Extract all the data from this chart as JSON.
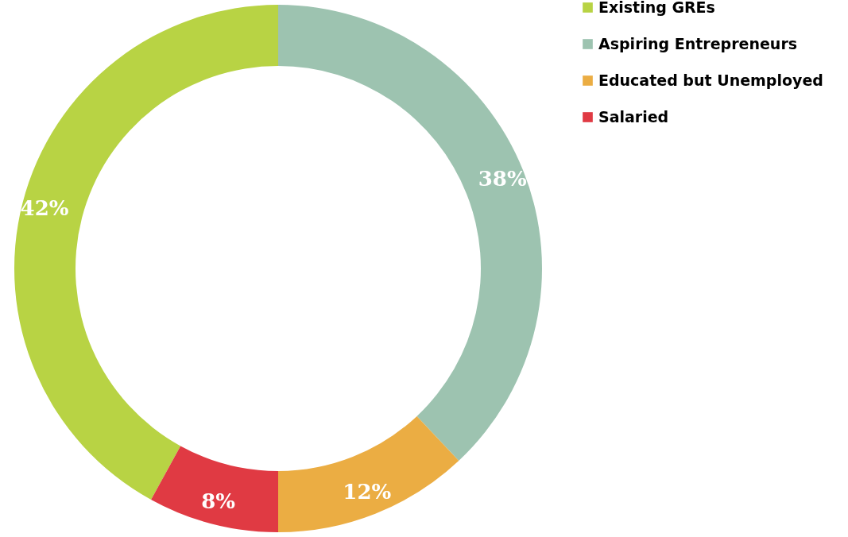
{
  "chart_data": {
    "type": "donut",
    "categories": [
      "Existing GREs",
      "Aspiring Entrepreneurs",
      "Educated but Unemployed",
      "Salaried"
    ],
    "values": [
      42,
      38,
      12,
      8
    ],
    "colors": [
      "#b8d344",
      "#9dc3b0",
      "#ebad43",
      "#e03a43"
    ],
    "value_labels": [
      "42%",
      "38%",
      "12%",
      "8%"
    ],
    "legend": "right"
  }
}
